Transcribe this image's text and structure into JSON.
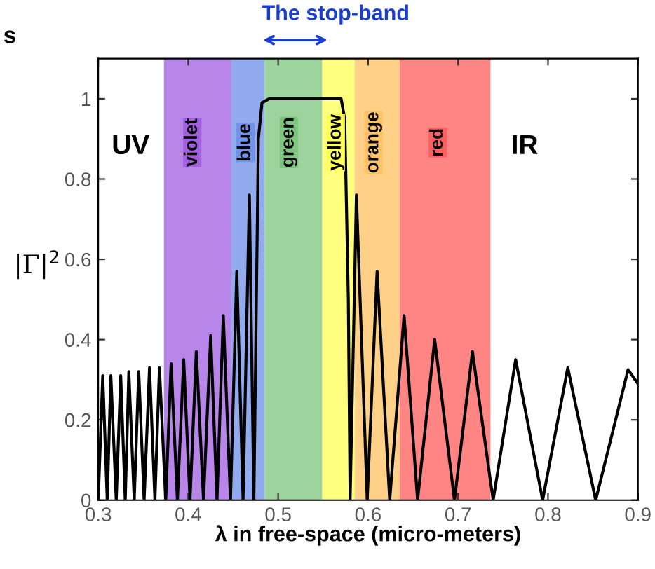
{
  "chart_data": {
    "type": "line",
    "xlabel": "λ in free-space (micro-meters)",
    "ylabel": "|Γ|$^{2}$",
    "xlim": [
      0.3,
      0.9
    ],
    "xticks": [
      0.3,
      0.4,
      0.5,
      0.6,
      0.7,
      0.8,
      0.9
    ],
    "ylim": [
      0,
      1.1
    ],
    "yticks": [
      0,
      0.2,
      0.4,
      0.6,
      0.8,
      1
    ],
    "grid": false,
    "line_style": "solid",
    "series": [
      {
        "color": "#000000",
        "x": [
          0.3,
          0.305,
          0.31,
          0.314,
          0.32,
          0.325,
          0.33,
          0.334,
          0.34,
          0.345,
          0.351,
          0.357,
          0.363,
          0.368,
          0.375,
          0.381,
          0.388,
          0.395,
          0.402,
          0.409,
          0.417,
          0.425,
          0.432,
          0.439,
          0.447,
          0.454,
          0.461,
          0.468,
          0.473,
          0.478,
          0.482,
          0.49,
          0.57,
          0.574,
          0.578,
          0.58,
          0.587,
          0.599,
          0.61,
          0.624,
          0.64,
          0.655,
          0.674,
          0.696,
          0.716,
          0.739,
          0.764,
          0.794,
          0.822,
          0.853,
          0.889,
          0.9
        ],
        "values": [
          0,
          0.31,
          0,
          0.31,
          0,
          0.31,
          0,
          0.32,
          0,
          0.32,
          0,
          0.33,
          0,
          0.33,
          0,
          0.34,
          0,
          0.35,
          0,
          0.37,
          0,
          0.41,
          0,
          0.46,
          0,
          0.57,
          0,
          0.76,
          0,
          0.9,
          0.99,
          1.0,
          1.0,
          0.95,
          0.5,
          0,
          0.76,
          0,
          0.57,
          0,
          0.46,
          0,
          0.4,
          0,
          0.37,
          0,
          0.35,
          0,
          0.33,
          0,
          0.325,
          0.29
        ]
      }
    ],
    "bands": [
      {
        "axis": "x",
        "from": 0.373,
        "to": 0.448,
        "label": "violet",
        "color": "#a05ce0"
      },
      {
        "axis": "x",
        "from": 0.448,
        "to": 0.485,
        "label": "blue",
        "color": "#6e8fe8"
      },
      {
        "axis": "x",
        "from": 0.485,
        "to": 0.549,
        "label": "green",
        "color": "#7cc47c"
      },
      {
        "axis": "x",
        "from": 0.549,
        "to": 0.585,
        "label": "yellow",
        "color": "#ffff55"
      },
      {
        "axis": "x",
        "from": 0.585,
        "to": 0.635,
        "label": "orange",
        "color": "#ffc060"
      },
      {
        "axis": "x",
        "from": 0.635,
        "to": 0.736,
        "label": "red",
        "color": "#ff5c5c"
      }
    ],
    "annotations": [
      "UV",
      "IR",
      "The stop-band",
      "s"
    ]
  }
}
